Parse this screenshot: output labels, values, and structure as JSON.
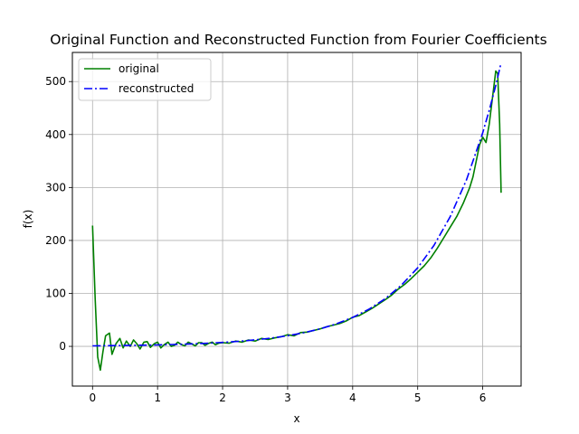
{
  "chart_data": {
    "type": "line",
    "title": "Original Function and Reconstructed Function from Fourier Coefficients",
    "xlabel": "x",
    "ylabel": "f(x)",
    "xlim": [
      -0.31,
      6.59
    ],
    "ylim": [
      -75,
      555
    ],
    "xticks": [
      0,
      1,
      2,
      3,
      4,
      5,
      6
    ],
    "yticks": [
      0,
      100,
      200,
      300,
      400,
      500
    ],
    "grid": true,
    "legend": "top-left",
    "series": [
      {
        "name": "original",
        "color": "#008000",
        "style": "solid",
        "x": [
          0,
          0.04,
          0.08,
          0.12,
          0.16,
          0.2,
          0.26,
          0.3,
          0.36,
          0.42,
          0.47,
          0.52,
          0.58,
          0.63,
          0.68,
          0.73,
          0.79,
          0.84,
          0.89,
          0.95,
          1.0,
          1.05,
          1.1,
          1.16,
          1.21,
          1.26,
          1.31,
          1.37,
          1.42,
          1.47,
          1.52,
          1.58,
          1.63,
          1.68,
          1.73,
          1.79,
          1.84,
          1.89,
          1.94,
          2.0,
          2.1,
          2.2,
          2.3,
          2.4,
          2.5,
          2.6,
          2.7,
          2.8,
          2.9,
          3.0,
          3.1,
          3.2,
          3.3,
          3.4,
          3.5,
          3.6,
          3.7,
          3.8,
          3.9,
          4.0,
          4.1,
          4.2,
          4.3,
          4.4,
          4.5,
          4.6,
          4.7,
          4.8,
          4.9,
          5.0,
          5.1,
          5.2,
          5.3,
          5.4,
          5.5,
          5.6,
          5.7,
          5.8,
          5.85,
          5.9,
          5.95,
          6.0,
          6.05,
          6.1,
          6.15,
          6.2,
          6.23,
          6.26,
          6.283
        ],
        "y": [
          228,
          90,
          -20,
          -45,
          -10,
          20,
          25,
          -15,
          5,
          15,
          -3,
          10,
          0,
          12,
          5,
          -5,
          8,
          9,
          -2,
          5,
          8,
          -3,
          3,
          8,
          0,
          2,
          8,
          3,
          1,
          8,
          5,
          1,
          7,
          7,
          2,
          6,
          8,
          3,
          6,
          7,
          6,
          10,
          8,
          12,
          10,
          15,
          13,
          16,
          18,
          22,
          20,
          26,
          27,
          30,
          33,
          37,
          40,
          43,
          48,
          55,
          58,
          65,
          72,
          80,
          88,
          97,
          108,
          117,
          128,
          140,
          152,
          167,
          185,
          205,
          225,
          245,
          270,
          300,
          320,
          350,
          380,
          395,
          385,
          420,
          470,
          520,
          515,
          420,
          290
        ]
      },
      {
        "name": "reconstructed",
        "color": "#0000ff",
        "style": "dashdot",
        "x": [
          0,
          0.25,
          0.5,
          0.75,
          1.0,
          1.25,
          1.5,
          1.75,
          2.0,
          2.25,
          2.5,
          2.75,
          3.0,
          3.25,
          3.5,
          3.75,
          4.0,
          4.25,
          4.5,
          4.75,
          5.0,
          5.25,
          5.5,
          5.75,
          6.0,
          6.1,
          6.2,
          6.283
        ],
        "y": [
          1,
          1.3,
          1.6,
          2.1,
          2.7,
          3.5,
          4.5,
          5.8,
          7.4,
          9.5,
          12.2,
          15.6,
          20.1,
          25.8,
          33.1,
          42.5,
          54.6,
          70.1,
          90.0,
          115.6,
          148.4,
          190.6,
          244.7,
          314.2,
          403.4,
          445.9,
          492.7,
          535.5
        ]
      }
    ]
  }
}
